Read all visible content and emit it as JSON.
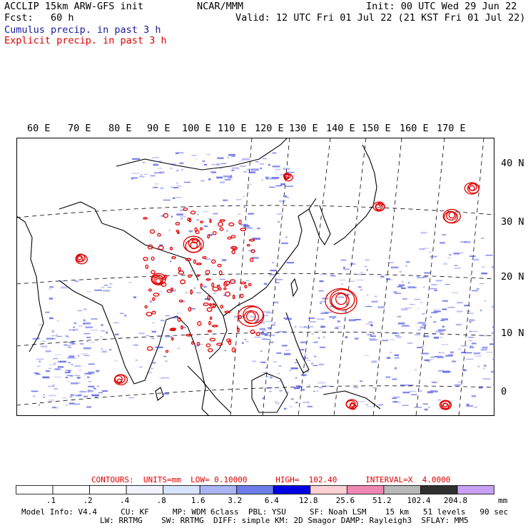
{
  "header": {
    "model_line": "ACCLIP 15km ARW-GFS init",
    "fcst_line": "Fcst:   60 h",
    "org": "NCAR/MMM",
    "init_line": "Init: 00 UTC Wed 29 Jun 22",
    "valid_line": "Valid: 12 UTC Fri 01 Jul 22 (21 KST Fri 01 Jul 22)",
    "cumulus_label": "Cumulus precip. in past 3 h",
    "explicit_label": "Explicit precip. in past 3 h"
  },
  "colors": {
    "cumulus": "#1a1acc",
    "explicit": "#dd0000",
    "land_outline": "#000000"
  },
  "map": {
    "longitude_labels": [
      "60 E",
      "70 E",
      "80 E",
      "90 E",
      "100 E",
      "110 E",
      "120 E",
      "130 E",
      "140 E",
      "150 E",
      "160 E",
      "170 E"
    ],
    "latitude_labels": [
      "40 N",
      "30 N",
      "20 N",
      "10 N",
      "0"
    ]
  },
  "contours": {
    "label": "CONTOURS:  UNITS=mm  LOW= 0.10000      HIGH=  102.40      INTERVAL=X  4.0000"
  },
  "scale": {
    "unit": "mm",
    "ticks": [
      ".1",
      ".2",
      ".4",
      ".8",
      "1.6",
      "3.2",
      "6.4",
      "12.8",
      "25.6",
      "51.2",
      "102.4",
      "204.8"
    ],
    "colors": [
      "#ffffff",
      "#ffffff",
      "#ffffff",
      "#f0f4ff",
      "#d8e4fc",
      "#a8b4f4",
      "#6c7ce8",
      "#0000e0",
      "#fcd0d4",
      "#f088b4",
      "#b8b8b8",
      "#303030",
      "#c8a0f4"
    ]
  },
  "footer": {
    "line1": "Model Info: V4.4     CU: KF     MP: WDM 6class  PBL: YSU     SF: Noah LSM    15 km   51 levels   90 sec",
    "line2": "LW: RRTMG    SW: RRTMG  DIFF: simple KM: 2D Smagor DAMP: Rayleigh3  SFLAY: MM5"
  }
}
